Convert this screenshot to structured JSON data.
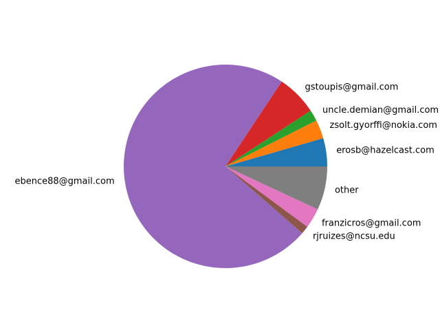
{
  "chart_data": {
    "type": "pie",
    "start_angle_deg": 0,
    "direction": "counterclockwise",
    "slices": [
      {
        "label": "erosb@hazelcast.com",
        "value": 4.5,
        "color": "#1f77b4"
      },
      {
        "label": "zsolt.gyorffi@nokia.com",
        "value": 3.0,
        "color": "#ff7f0e"
      },
      {
        "label": "uncle.demian@gmail.com",
        "value": 1.8,
        "color": "#2ca02c"
      },
      {
        "label": "gstoupis@gmail.com",
        "value": 6.5,
        "color": "#d62728"
      },
      {
        "label": "ebence88@gmail.com",
        "value": 73.5,
        "color": "#9467bd"
      },
      {
        "label": "rjruizes@ncsu.edu",
        "value": 1.3,
        "color": "#8c564b"
      },
      {
        "label": "franzicros@gmail.com",
        "value": 3.2,
        "color": "#e377c2"
      },
      {
        "label": "other",
        "value": 7.0,
        "color": "#7f7f7f"
      }
    ]
  }
}
